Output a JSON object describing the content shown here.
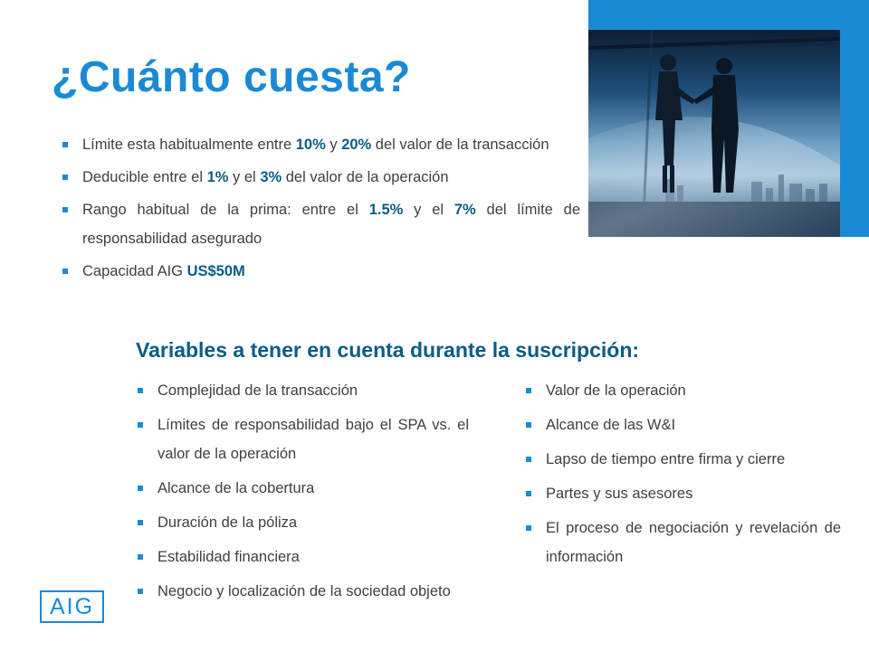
{
  "title": "¿Cuánto cuesta?",
  "top_bullets": [
    {
      "parts": [
        "Límite esta habitualmente entre ",
        "10%",
        " y ",
        "20%",
        " del valor de la transacción"
      ]
    },
    {
      "parts": [
        "Deducible entre el ",
        "1%",
        " y el ",
        "3%",
        " del valor de la operación"
      ]
    },
    {
      "parts": [
        "Rango habitual de la prima: entre el ",
        "1.5%",
        " y el ",
        "7%",
        " del límite de responsabilidad asegurado"
      ]
    },
    {
      "parts": [
        "Capacidad AIG ",
        "US$50M"
      ]
    }
  ],
  "subtitle": "Variables a tener en cuenta durante  la suscripción:",
  "left_bullets": [
    "Complejidad de la transacción",
    "Límites de responsabilidad bajo el SPA vs. el valor de la operación",
    "Alcance de la cobertura",
    "Duración de la póliza",
    "Estabilidad financiera",
    "Negocio y localización de la sociedad objeto"
  ],
  "right_bullets": [
    "Valor de la operación",
    "Alcance de las W&I",
    "Lapso de tiempo entre firma y cierre",
    "Partes y sus asesores",
    "El proceso de negociación y revelación de información"
  ],
  "logo": "AIG",
  "colors": {
    "brand_blue": "#1b8ad6",
    "dark_blue": "#0a5c86",
    "text": "#404040"
  },
  "image": {
    "depicts": "two-people-handshake-photo"
  }
}
